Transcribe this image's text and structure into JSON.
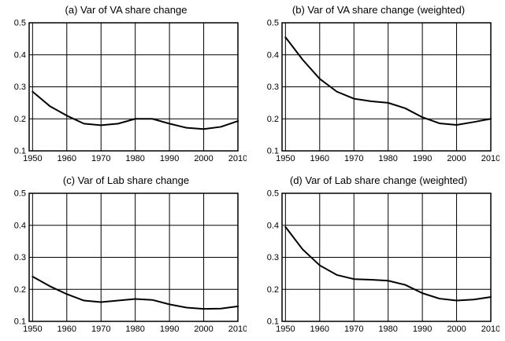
{
  "figure": {
    "background": "#ffffff",
    "line_color": "#000000",
    "grid_color": "#000000",
    "frame_color": "#000000"
  },
  "chart_data": [
    {
      "type": "line",
      "title": "(a) Var of VA share change",
      "xlabel": "",
      "ylabel": "",
      "xlim": [
        1949,
        2010
      ],
      "ylim": [
        0.1,
        0.5
      ],
      "xticks": [
        1950,
        1960,
        1970,
        1980,
        1990,
        2000,
        2010
      ],
      "yticks": [
        0.1,
        0.2,
        0.3,
        0.4,
        0.5
      ],
      "grid": true,
      "legend": "none",
      "x": [
        1950,
        1955,
        1960,
        1965,
        1970,
        1975,
        1980,
        1985,
        1990,
        1995,
        2000,
        2005,
        2010
      ],
      "values": [
        0.285,
        0.24,
        0.21,
        0.185,
        0.18,
        0.185,
        0.2,
        0.2,
        0.185,
        0.172,
        0.168,
        0.175,
        0.193
      ]
    },
    {
      "type": "line",
      "title": "(b) Var of VA share change (weighted)",
      "xlabel": "",
      "ylabel": "",
      "xlim": [
        1949,
        2010
      ],
      "ylim": [
        0.1,
        0.5
      ],
      "xticks": [
        1950,
        1960,
        1970,
        1980,
        1990,
        2000,
        2010
      ],
      "yticks": [
        0.1,
        0.2,
        0.3,
        0.4,
        0.5
      ],
      "grid": true,
      "legend": "none",
      "x": [
        1950,
        1955,
        1960,
        1965,
        1970,
        1975,
        1980,
        1985,
        1990,
        1995,
        2000,
        2005,
        2010
      ],
      "values": [
        0.455,
        0.385,
        0.325,
        0.285,
        0.263,
        0.255,
        0.25,
        0.233,
        0.205,
        0.186,
        0.181,
        0.19,
        0.2
      ]
    },
    {
      "type": "line",
      "title": "(c) Var of Lab share change",
      "xlabel": "",
      "ylabel": "",
      "xlim": [
        1949,
        2010
      ],
      "ylim": [
        0.1,
        0.5
      ],
      "xticks": [
        1950,
        1960,
        1970,
        1980,
        1990,
        2000,
        2010
      ],
      "yticks": [
        0.1,
        0.2,
        0.3,
        0.4,
        0.5
      ],
      "grid": true,
      "legend": "none",
      "x": [
        1950,
        1955,
        1960,
        1965,
        1970,
        1975,
        1980,
        1985,
        1990,
        1995,
        2000,
        2005,
        2010
      ],
      "values": [
        0.24,
        0.21,
        0.185,
        0.165,
        0.16,
        0.165,
        0.17,
        0.167,
        0.153,
        0.143,
        0.139,
        0.14,
        0.147
      ]
    },
    {
      "type": "line",
      "title": "(d) Var of Lab share change (weighted)",
      "xlabel": "",
      "ylabel": "",
      "xlim": [
        1949,
        2010
      ],
      "ylim": [
        0.1,
        0.5
      ],
      "xticks": [
        1950,
        1960,
        1970,
        1980,
        1990,
        2000,
        2010
      ],
      "yticks": [
        0.1,
        0.2,
        0.3,
        0.4,
        0.5
      ],
      "grid": true,
      "legend": "none",
      "x": [
        1950,
        1955,
        1960,
        1965,
        1970,
        1975,
        1980,
        1985,
        1990,
        1995,
        2000,
        2005,
        2010
      ],
      "values": [
        0.395,
        0.325,
        0.275,
        0.245,
        0.232,
        0.23,
        0.227,
        0.214,
        0.188,
        0.171,
        0.165,
        0.168,
        0.176
      ]
    }
  ]
}
